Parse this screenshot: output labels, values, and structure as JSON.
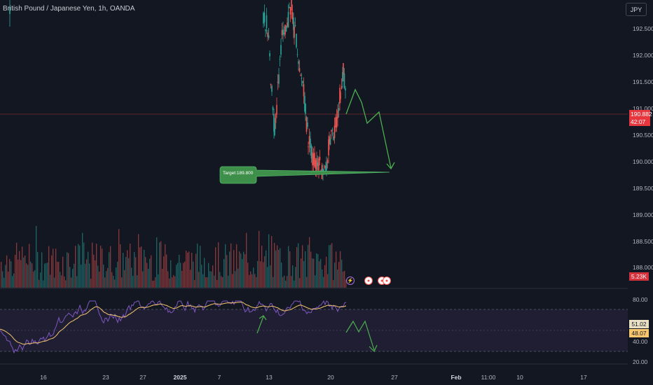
{
  "symbol": {
    "title": "British Pound / Japanese Yen, 1h, OANDA"
  },
  "currency_button": "JPY",
  "price_axis": {
    "ticks": [
      "192.500",
      "192.000",
      "191.500",
      "191.000",
      "190.500",
      "190.000",
      "189.500",
      "189.000",
      "188.500",
      "188.000"
    ],
    "current_price": "190.882",
    "countdown": "42:07",
    "volume_badge": "5.23K"
  },
  "rsi_axis": {
    "ticks": [
      "80.00",
      "40.00",
      "20.00"
    ],
    "rsi_value": "51.02",
    "ma_value": "48.07"
  },
  "time_axis": {
    "ticks": [
      "16",
      "23",
      "27",
      "2025",
      "7",
      "13",
      "20",
      "27",
      "Feb",
      "11:00",
      "10",
      "17"
    ]
  },
  "annotation": {
    "target_label": "Target:189.800"
  },
  "colors": {
    "background": "#131722",
    "up_candle": "#26a69a",
    "down_candle": "#ef5350",
    "projection_arrow": "#4caf50",
    "target_box": "#3d8f4a",
    "rsi_line": "#7e57c2",
    "rsi_ma": "#f7c76f",
    "rsi_band": "#2a2540",
    "price_line": "#e8363f"
  },
  "event_icons": [
    "lightning-icon",
    "flag-icon",
    "flag-icon",
    "flag-icon"
  ]
}
